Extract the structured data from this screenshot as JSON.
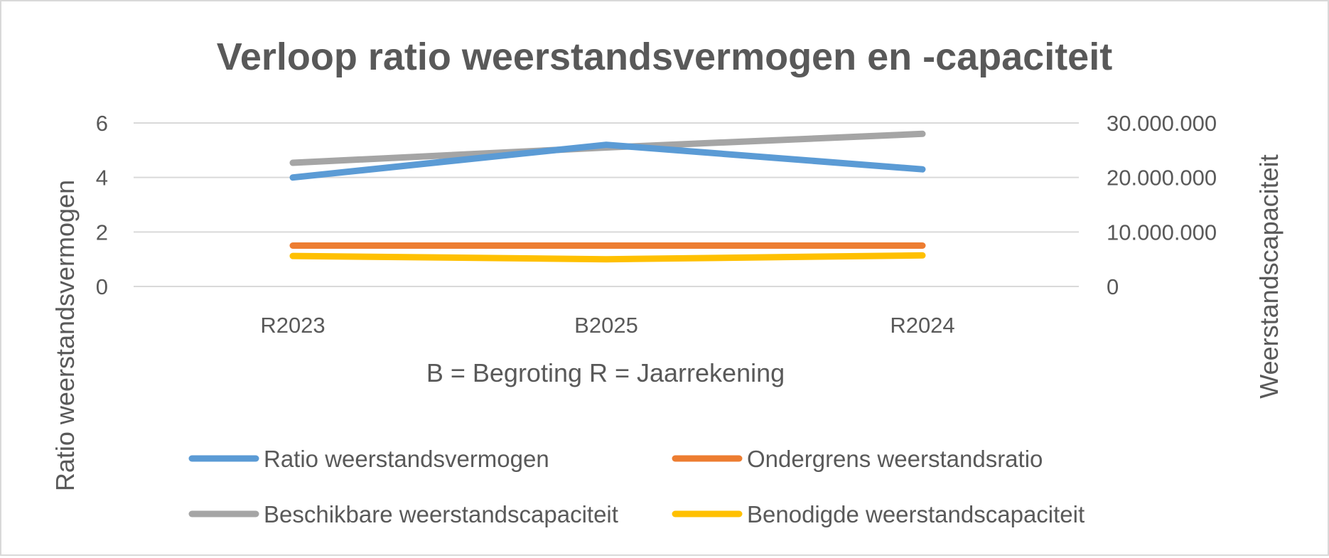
{
  "chart_data": {
    "type": "line",
    "title": "Verloop ratio weerstandsvermogen en -capaciteit",
    "xlabel": "B = Begroting R = Jaarrekening",
    "ylabel": "Ratio weerstandsvermogen",
    "y2label": "Weerstandscapaciteit",
    "categories": [
      "R2023",
      "B2025",
      "R2024"
    ],
    "ylim": [
      0,
      6
    ],
    "y2lim": [
      0,
      30000000
    ],
    "y_ticks": [
      "0",
      "2",
      "4",
      "6"
    ],
    "y2_ticks": [
      "0",
      "10.000.000",
      "20.000.000",
      "30.000.000"
    ],
    "grid": true,
    "legend_position": "bottom",
    "series": [
      {
        "name": "Ratio weerstandsvermogen",
        "axis": "left",
        "color": "#5b9bd5",
        "values": [
          4.0,
          5.2,
          4.3
        ]
      },
      {
        "name": "Ondergrens weerstandsratio",
        "axis": "left",
        "color": "#ed7d31",
        "values": [
          1.5,
          1.5,
          1.5
        ]
      },
      {
        "name": "Beschikbare weerstandscapaciteit",
        "axis": "right",
        "color": "#a5a5a5",
        "values": [
          22700000,
          25500000,
          28000000
        ]
      },
      {
        "name": "Benodigde weerstandscapaciteit",
        "axis": "right",
        "color": "#ffc000",
        "values": [
          5600000,
          5000000,
          5700000
        ]
      }
    ]
  }
}
